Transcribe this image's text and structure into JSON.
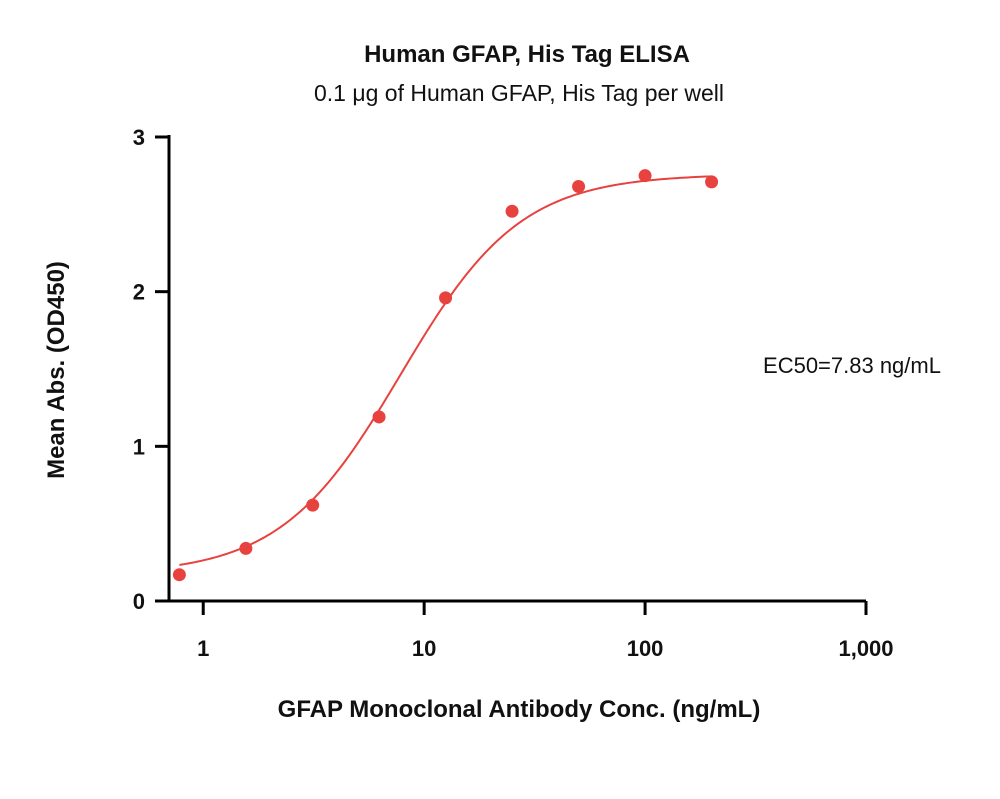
{
  "chart_data": {
    "type": "scatter",
    "title": "Human GFAP, His Tag ELISA",
    "subtitle": "0.1 μg of Human GFAP, His Tag per well",
    "xlabel": "GFAP Monoclonal Antibody Conc. (ng/mL)",
    "ylabel": "Mean Abs. (OD450)",
    "x_scale": "log",
    "xlim": [
      0.7,
      1000
    ],
    "ylim": [
      0,
      3
    ],
    "x_ticks": [
      1,
      10,
      100,
      1000
    ],
    "x_tick_labels": [
      "1",
      "10",
      "100",
      "1,000"
    ],
    "y_ticks": [
      0,
      1,
      2,
      3
    ],
    "y_tick_labels": [
      "0",
      "1",
      "2",
      "3"
    ],
    "grid": false,
    "color": "#e8423f",
    "series": [
      {
        "x": [
          0.78,
          1.56,
          3.13,
          6.25,
          12.5,
          25,
          50,
          100,
          200
        ],
        "y": [
          0.17,
          0.34,
          0.62,
          1.19,
          1.96,
          2.52,
          2.68,
          2.75,
          2.71
        ]
      }
    ],
    "fit": {
      "model": "4PL",
      "bottom": 0.17,
      "top": 2.76,
      "ec50": 7.83,
      "hill": 1.6
    },
    "annotation": "EC50=7.83 ng/mL"
  }
}
